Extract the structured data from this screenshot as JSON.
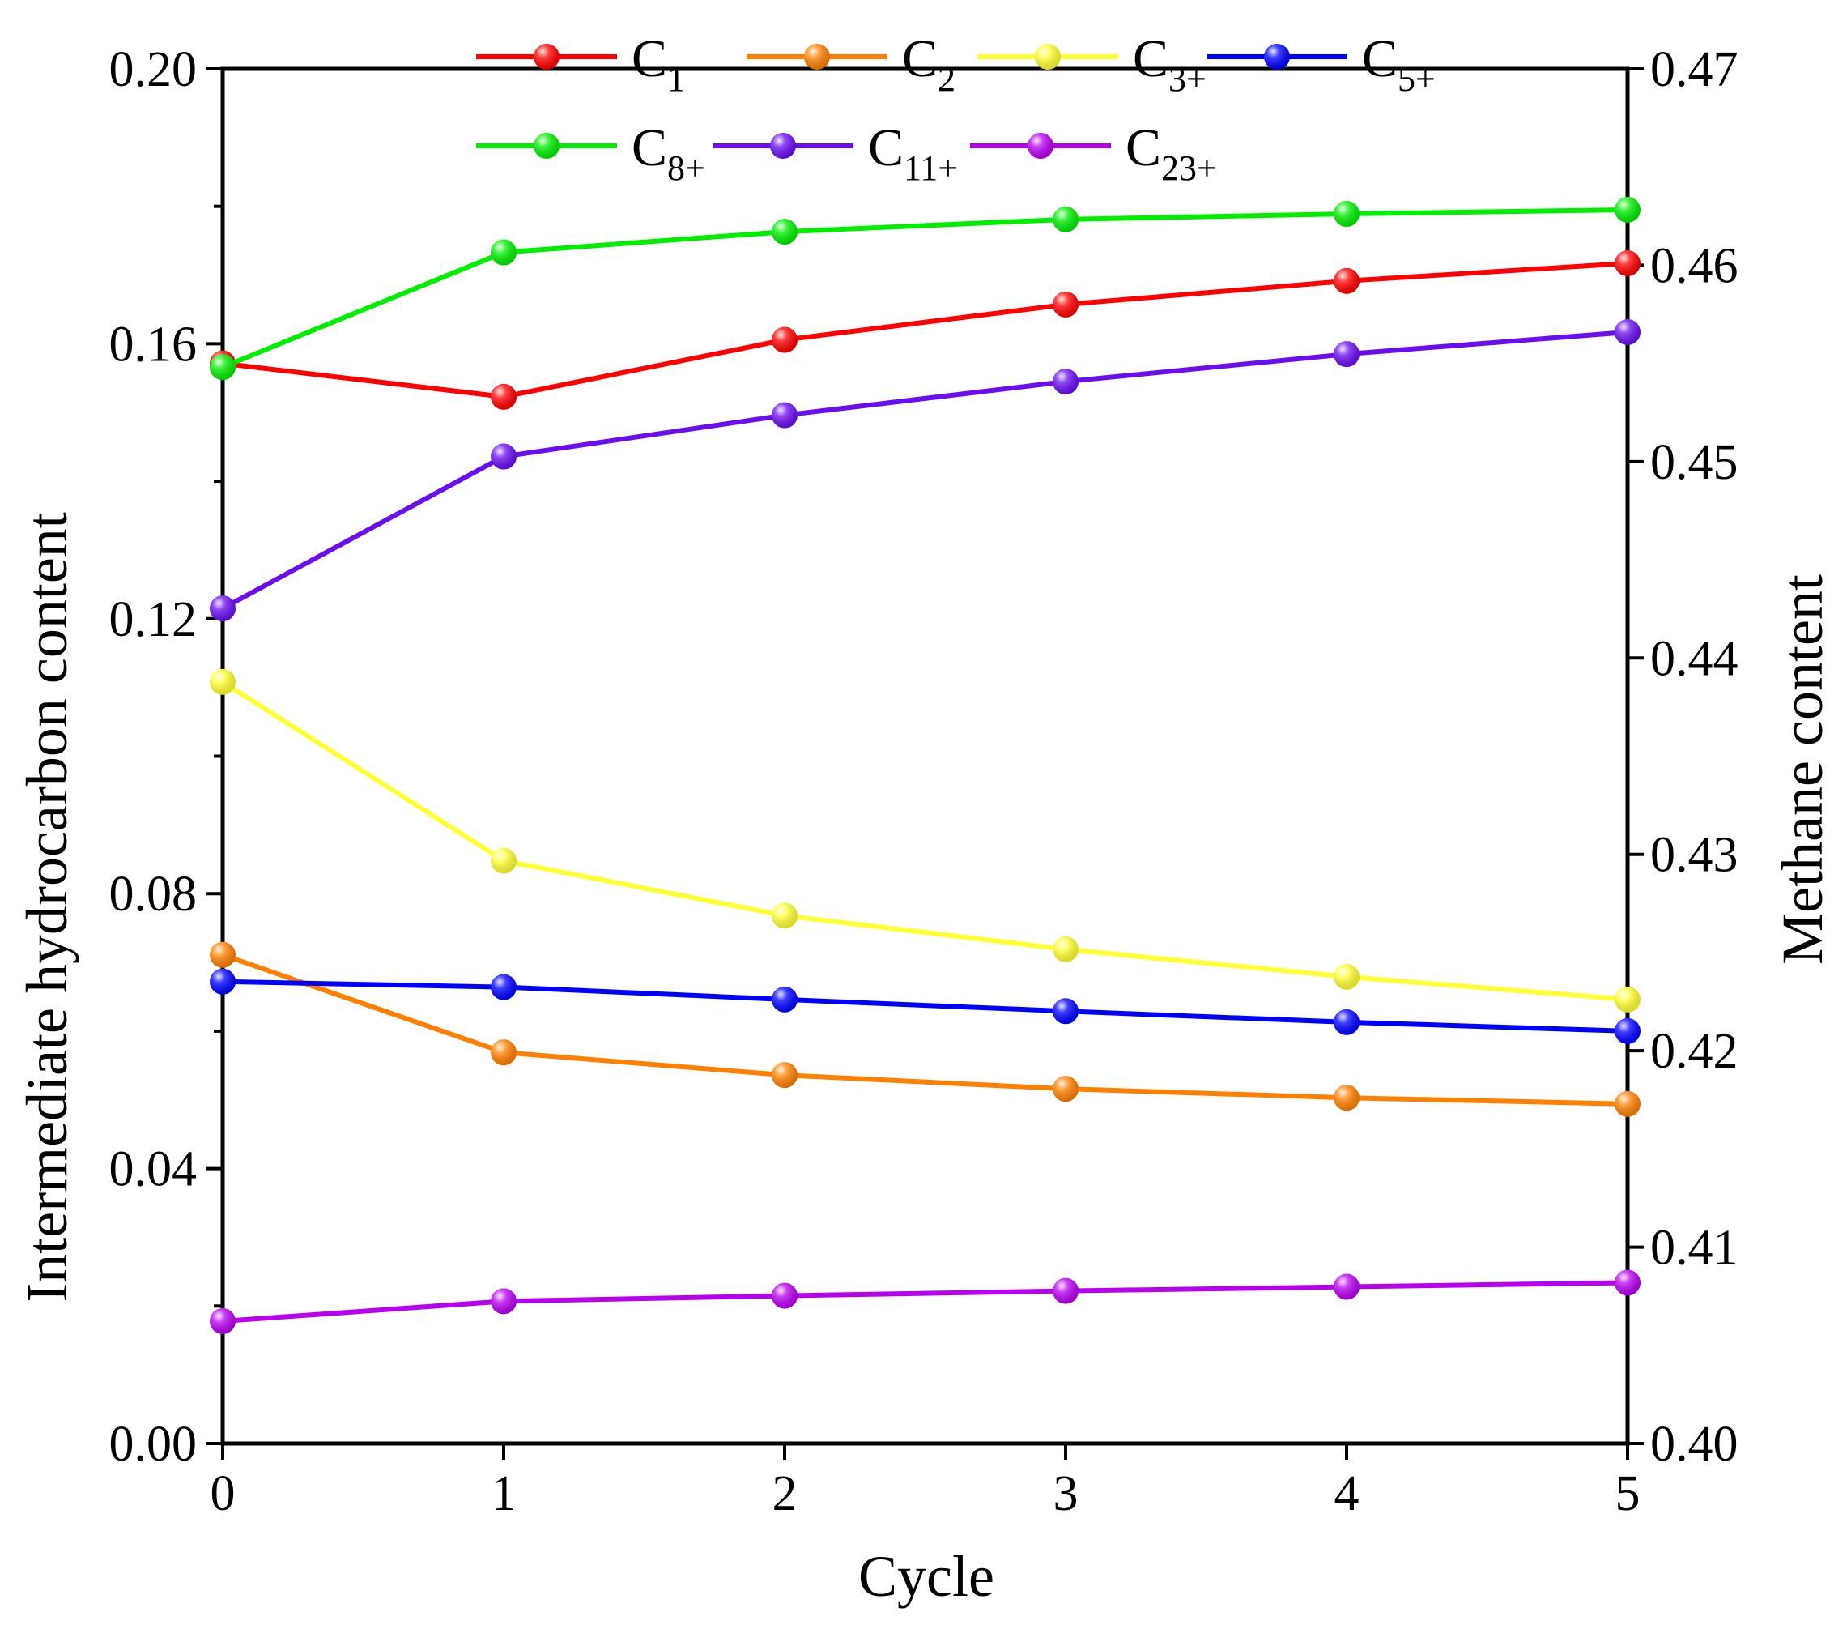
{
  "chart_data": {
    "type": "line",
    "x": [
      0,
      1,
      2,
      3,
      4,
      5
    ],
    "xlabel": "Cycle",
    "ylabel_left": "Intermediate hydrocarbon content",
    "ylabel_right": "Methane content",
    "xlim": [
      0,
      5
    ],
    "ylim_left": [
      0.0,
      0.2
    ],
    "ylim_right": [
      0.4,
      0.47
    ],
    "x_ticks": [
      "0",
      "1",
      "2",
      "3",
      "4",
      "5"
    ],
    "y_left_ticks": [
      "0.00",
      "0.04",
      "0.08",
      "0.12",
      "0.16",
      "0.20"
    ],
    "y_right_ticks": [
      "0.40",
      "0.41",
      "0.42",
      "0.43",
      "0.44",
      "0.45",
      "0.46",
      "0.47"
    ],
    "grid": false,
    "legend_position": "top",
    "series": [
      {
        "id": "c1",
        "name": "C1",
        "base": "C",
        "sub": "1",
        "axis": "right",
        "color": "#ff0000",
        "values": [
          0.455,
          0.4533,
          0.4562,
          0.458,
          0.4592,
          0.4601
        ]
      },
      {
        "id": "c2",
        "name": "C2",
        "base": "C",
        "sub": "2",
        "axis": "left",
        "color": "#ff8000",
        "values": [
          0.0711,
          0.0569,
          0.0536,
          0.0516,
          0.0503,
          0.0494
        ]
      },
      {
        "id": "c3",
        "name": "C3+",
        "base": "C",
        "sub": "3+",
        "axis": "left",
        "color": "#ffff33",
        "values": [
          0.1108,
          0.0848,
          0.0768,
          0.0719,
          0.0679,
          0.0646
        ]
      },
      {
        "id": "c5",
        "name": "C5+",
        "base": "C",
        "sub": "5+",
        "axis": "left",
        "color": "#0000ff",
        "values": [
          0.0672,
          0.0664,
          0.0646,
          0.0629,
          0.0613,
          0.06
        ]
      },
      {
        "id": "c8",
        "name": "C8+",
        "base": "C",
        "sub": "8+",
        "axis": "left",
        "color": "#00ee00",
        "values": [
          0.1566,
          0.1733,
          0.1763,
          0.1781,
          0.1789,
          0.1795
        ]
      },
      {
        "id": "c11",
        "name": "C11+",
        "base": "C",
        "sub": "11+",
        "axis": "left",
        "color": "#6a0df0",
        "values": [
          0.1215,
          0.1436,
          0.1496,
          0.1545,
          0.1585,
          0.1617
        ]
      },
      {
        "id": "c23",
        "name": "C23+",
        "base": "C",
        "sub": "23+",
        "axis": "left",
        "color": "#b800f0",
        "values": [
          0.0178,
          0.0207,
          0.0215,
          0.0222,
          0.0228,
          0.0234
        ]
      }
    ]
  }
}
